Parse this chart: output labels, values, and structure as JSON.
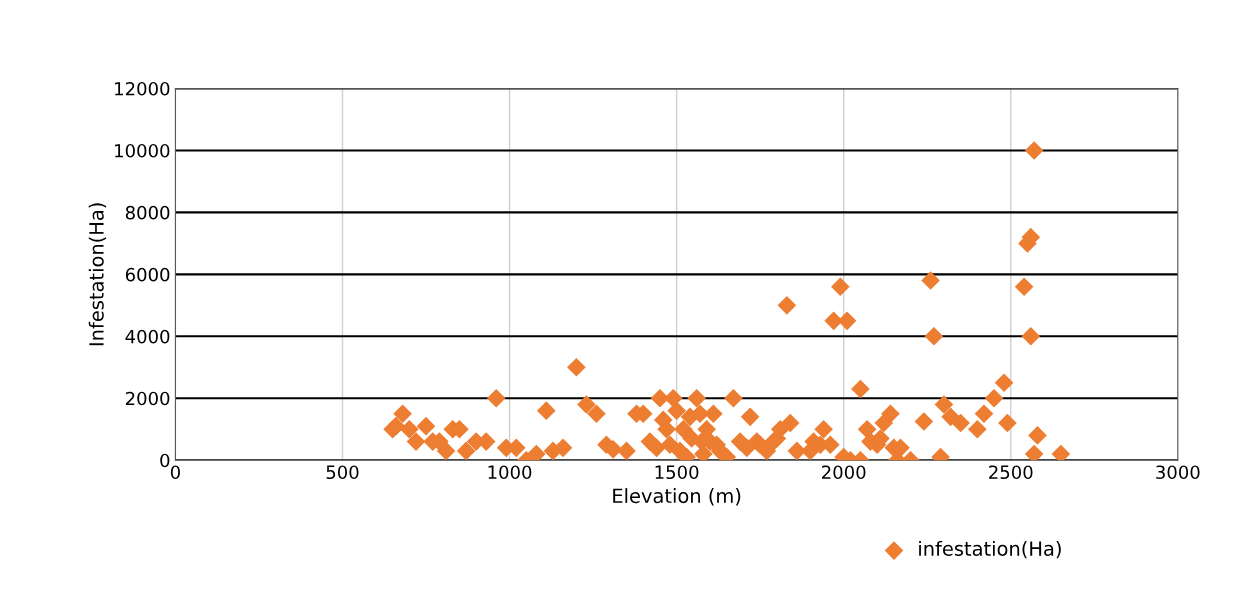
{
  "chart_data": {
    "type": "scatter",
    "xlabel": "Elevation (m)",
    "ylabel": "Infestation(Ha)",
    "xlim": [
      0,
      3000
    ],
    "xticks": [
      0,
      500,
      1000,
      1500,
      2000,
      2500,
      3000
    ],
    "ylim": [
      0,
      12000
    ],
    "yticks": [
      0,
      2000,
      4000,
      6000,
      8000,
      10000,
      12000
    ],
    "grid": true,
    "legend": "bottom",
    "marker": "diamond",
    "series": [
      {
        "name": "infestation(Ha)",
        "color": "#ed7d31",
        "x": [
          650,
          660,
          680,
          700,
          720,
          750,
          770,
          790,
          810,
          830,
          850,
          870,
          900,
          930,
          960,
          990,
          1020,
          1050,
          1080,
          1110,
          1130,
          1160,
          1200,
          1230,
          1260,
          1290,
          1310,
          1350,
          1380,
          1400,
          1420,
          1440,
          1450,
          1460,
          1470,
          1480,
          1490,
          1500,
          1510,
          1520,
          1530,
          1540,
          1545,
          1560,
          1570,
          1575,
          1580,
          1590,
          1600,
          1610,
          1620,
          1630,
          1650,
          1670,
          1690,
          1710,
          1720,
          1740,
          1750,
          1770,
          1790,
          1800,
          1810,
          1830,
          1840,
          1860,
          1900,
          1910,
          1930,
          1940,
          1960,
          1970,
          1990,
          2000,
          2010,
          2020,
          2050,
          2050,
          2070,
          2080,
          2100,
          2110,
          2120,
          2140,
          2150,
          2160,
          2170,
          2200,
          2240,
          2260,
          2270,
          2290,
          2300,
          2320,
          2350,
          2400,
          2420,
          2450,
          2480,
          2490,
          2540,
          2550,
          2560,
          2560,
          2570,
          2570,
          2580,
          2650
        ],
        "values": [
          1000,
          1100,
          1500,
          1000,
          600,
          1100,
          600,
          600,
          300,
          1000,
          1000,
          300,
          600,
          600,
          2000,
          400,
          400,
          0,
          200,
          1600,
          300,
          400,
          3000,
          1800,
          1500,
          500,
          350,
          300,
          1500,
          1500,
          600,
          400,
          2000,
          1300,
          1000,
          500,
          2000,
          1600,
          300,
          1000,
          100,
          1400,
          700,
          2000,
          1500,
          600,
          200,
          1000,
          600,
          1500,
          500,
          300,
          100,
          2000,
          600,
          400,
          1400,
          600,
          500,
          300,
          600,
          700,
          1000,
          5000,
          1200,
          300,
          300,
          600,
          500,
          1000,
          500,
          4500,
          5600,
          100,
          4500,
          0,
          0,
          2300,
          1000,
          600,
          500,
          700,
          1200,
          1500,
          400,
          0,
          400,
          0,
          1250,
          5800,
          4000,
          100,
          1800,
          1400,
          1200,
          1000,
          1500,
          2000,
          2500,
          1200,
          5600,
          7000,
          7200,
          4000,
          10000,
          200,
          800,
          200
        ]
      }
    ]
  }
}
